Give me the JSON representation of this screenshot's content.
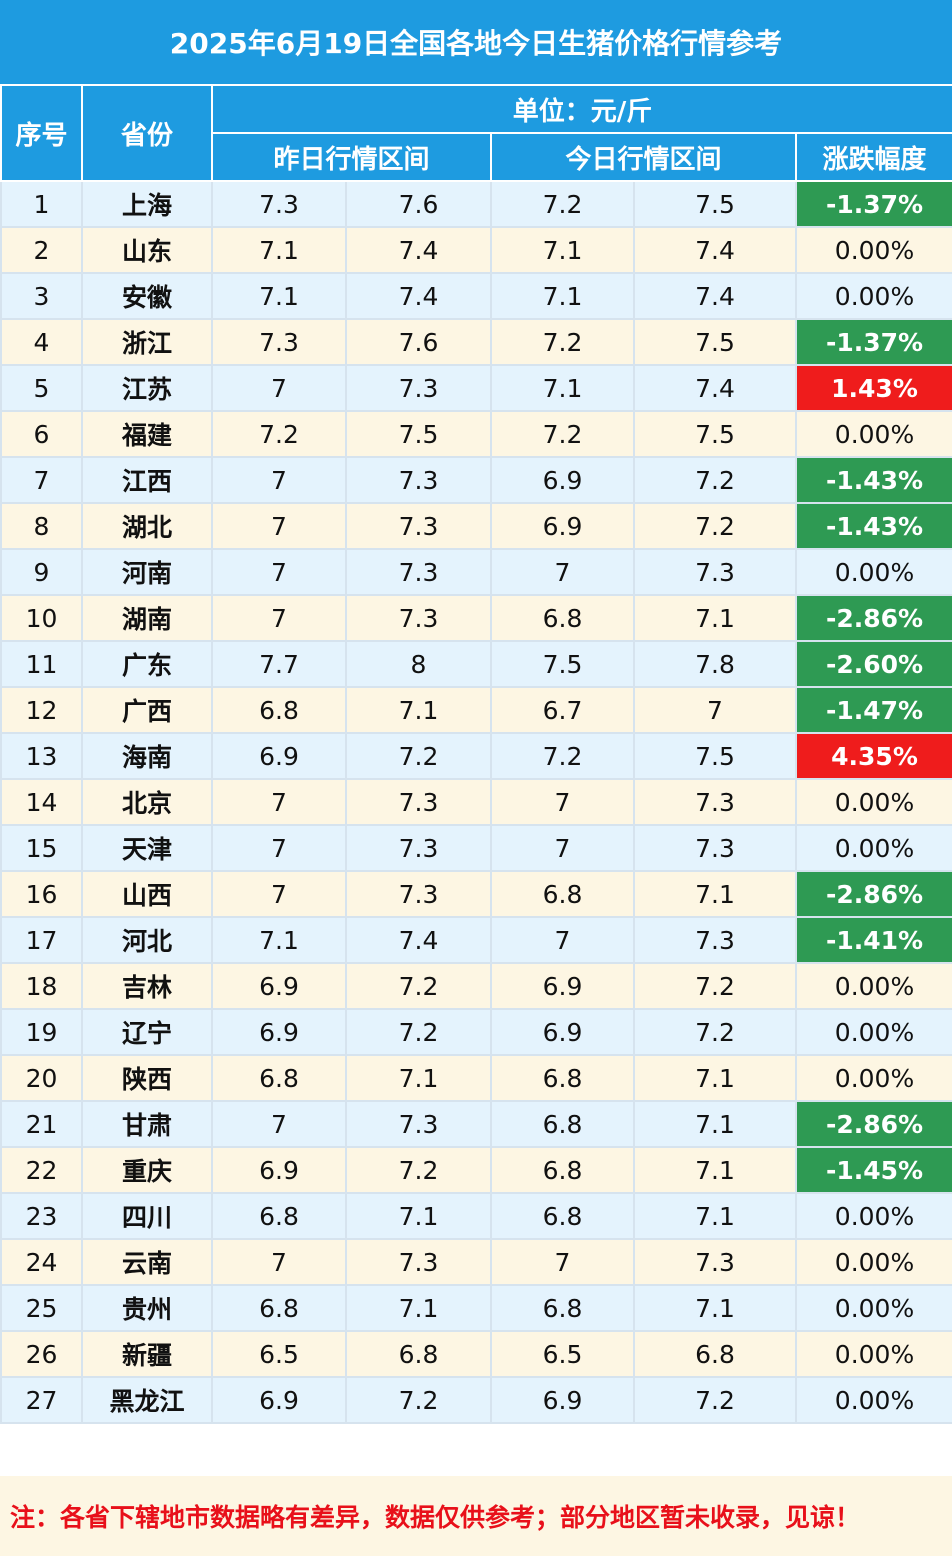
{
  "title": "2025年6月19日全国各地今日生猪价格行情参考",
  "header": {
    "col_index": "序号",
    "col_province": "省份",
    "unit": "单位：元/斤",
    "yesterday": "昨日行情区间",
    "today": "今日行情区间",
    "change": "涨跌幅度"
  },
  "colors": {
    "header_bg": "#1e9be0",
    "up": "#ef1c1c",
    "down": "#2e9a53",
    "note": "#e8101a"
  },
  "rows": [
    {
      "no": "1",
      "province": "上海",
      "y_low": "7.3",
      "y_high": "7.6",
      "t_low": "7.2",
      "t_high": "7.5",
      "change": "-1.37%",
      "trend": "down"
    },
    {
      "no": "2",
      "province": "山东",
      "y_low": "7.1",
      "y_high": "7.4",
      "t_low": "7.1",
      "t_high": "7.4",
      "change": "0.00%",
      "trend": "flat"
    },
    {
      "no": "3",
      "province": "安徽",
      "y_low": "7.1",
      "y_high": "7.4",
      "t_low": "7.1",
      "t_high": "7.4",
      "change": "0.00%",
      "trend": "flat"
    },
    {
      "no": "4",
      "province": "浙江",
      "y_low": "7.3",
      "y_high": "7.6",
      "t_low": "7.2",
      "t_high": "7.5",
      "change": "-1.37%",
      "trend": "down"
    },
    {
      "no": "5",
      "province": "江苏",
      "y_low": "7",
      "y_high": "7.3",
      "t_low": "7.1",
      "t_high": "7.4",
      "change": "1.43%",
      "trend": "up"
    },
    {
      "no": "6",
      "province": "福建",
      "y_low": "7.2",
      "y_high": "7.5",
      "t_low": "7.2",
      "t_high": "7.5",
      "change": "0.00%",
      "trend": "flat"
    },
    {
      "no": "7",
      "province": "江西",
      "y_low": "7",
      "y_high": "7.3",
      "t_low": "6.9",
      "t_high": "7.2",
      "change": "-1.43%",
      "trend": "down"
    },
    {
      "no": "8",
      "province": "湖北",
      "y_low": "7",
      "y_high": "7.3",
      "t_low": "6.9",
      "t_high": "7.2",
      "change": "-1.43%",
      "trend": "down"
    },
    {
      "no": "9",
      "province": "河南",
      "y_low": "7",
      "y_high": "7.3",
      "t_low": "7",
      "t_high": "7.3",
      "change": "0.00%",
      "trend": "flat"
    },
    {
      "no": "10",
      "province": "湖南",
      "y_low": "7",
      "y_high": "7.3",
      "t_low": "6.8",
      "t_high": "7.1",
      "change": "-2.86%",
      "trend": "down"
    },
    {
      "no": "11",
      "province": "广东",
      "y_low": "7.7",
      "y_high": "8",
      "t_low": "7.5",
      "t_high": "7.8",
      "change": "-2.60%",
      "trend": "down"
    },
    {
      "no": "12",
      "province": "广西",
      "y_low": "6.8",
      "y_high": "7.1",
      "t_low": "6.7",
      "t_high": "7",
      "change": "-1.47%",
      "trend": "down"
    },
    {
      "no": "13",
      "province": "海南",
      "y_low": "6.9",
      "y_high": "7.2",
      "t_low": "7.2",
      "t_high": "7.5",
      "change": "4.35%",
      "trend": "up"
    },
    {
      "no": "14",
      "province": "北京",
      "y_low": "7",
      "y_high": "7.3",
      "t_low": "7",
      "t_high": "7.3",
      "change": "0.00%",
      "trend": "flat"
    },
    {
      "no": "15",
      "province": "天津",
      "y_low": "7",
      "y_high": "7.3",
      "t_low": "7",
      "t_high": "7.3",
      "change": "0.00%",
      "trend": "flat"
    },
    {
      "no": "16",
      "province": "山西",
      "y_low": "7",
      "y_high": "7.3",
      "t_low": "6.8",
      "t_high": "7.1",
      "change": "-2.86%",
      "trend": "down"
    },
    {
      "no": "17",
      "province": "河北",
      "y_low": "7.1",
      "y_high": "7.4",
      "t_low": "7",
      "t_high": "7.3",
      "change": "-1.41%",
      "trend": "down"
    },
    {
      "no": "18",
      "province": "吉林",
      "y_low": "6.9",
      "y_high": "7.2",
      "t_low": "6.9",
      "t_high": "7.2",
      "change": "0.00%",
      "trend": "flat"
    },
    {
      "no": "19",
      "province": "辽宁",
      "y_low": "6.9",
      "y_high": "7.2",
      "t_low": "6.9",
      "t_high": "7.2",
      "change": "0.00%",
      "trend": "flat"
    },
    {
      "no": "20",
      "province": "陕西",
      "y_low": "6.8",
      "y_high": "7.1",
      "t_low": "6.8",
      "t_high": "7.1",
      "change": "0.00%",
      "trend": "flat"
    },
    {
      "no": "21",
      "province": "甘肃",
      "y_low": "7",
      "y_high": "7.3",
      "t_low": "6.8",
      "t_high": "7.1",
      "change": "-2.86%",
      "trend": "down"
    },
    {
      "no": "22",
      "province": "重庆",
      "y_low": "6.9",
      "y_high": "7.2",
      "t_low": "6.8",
      "t_high": "7.1",
      "change": "-1.45%",
      "trend": "down"
    },
    {
      "no": "23",
      "province": "四川",
      "y_low": "6.8",
      "y_high": "7.1",
      "t_low": "6.8",
      "t_high": "7.1",
      "change": "0.00%",
      "trend": "flat"
    },
    {
      "no": "24",
      "province": "云南",
      "y_low": "7",
      "y_high": "7.3",
      "t_low": "7",
      "t_high": "7.3",
      "change": "0.00%",
      "trend": "flat"
    },
    {
      "no": "25",
      "province": "贵州",
      "y_low": "6.8",
      "y_high": "7.1",
      "t_low": "6.8",
      "t_high": "7.1",
      "change": "0.00%",
      "trend": "flat"
    },
    {
      "no": "26",
      "province": "新疆",
      "y_low": "6.5",
      "y_high": "6.8",
      "t_low": "6.5",
      "t_high": "6.8",
      "change": "0.00%",
      "trend": "flat"
    },
    {
      "no": "27",
      "province": "黑龙江",
      "y_low": "6.9",
      "y_high": "7.2",
      "t_low": "6.9",
      "t_high": "7.2",
      "change": "0.00%",
      "trend": "flat"
    }
  ],
  "note": "注：各省下辖地市数据略有差异，数据仅供参考；部分地区暂未收录，见谅！"
}
